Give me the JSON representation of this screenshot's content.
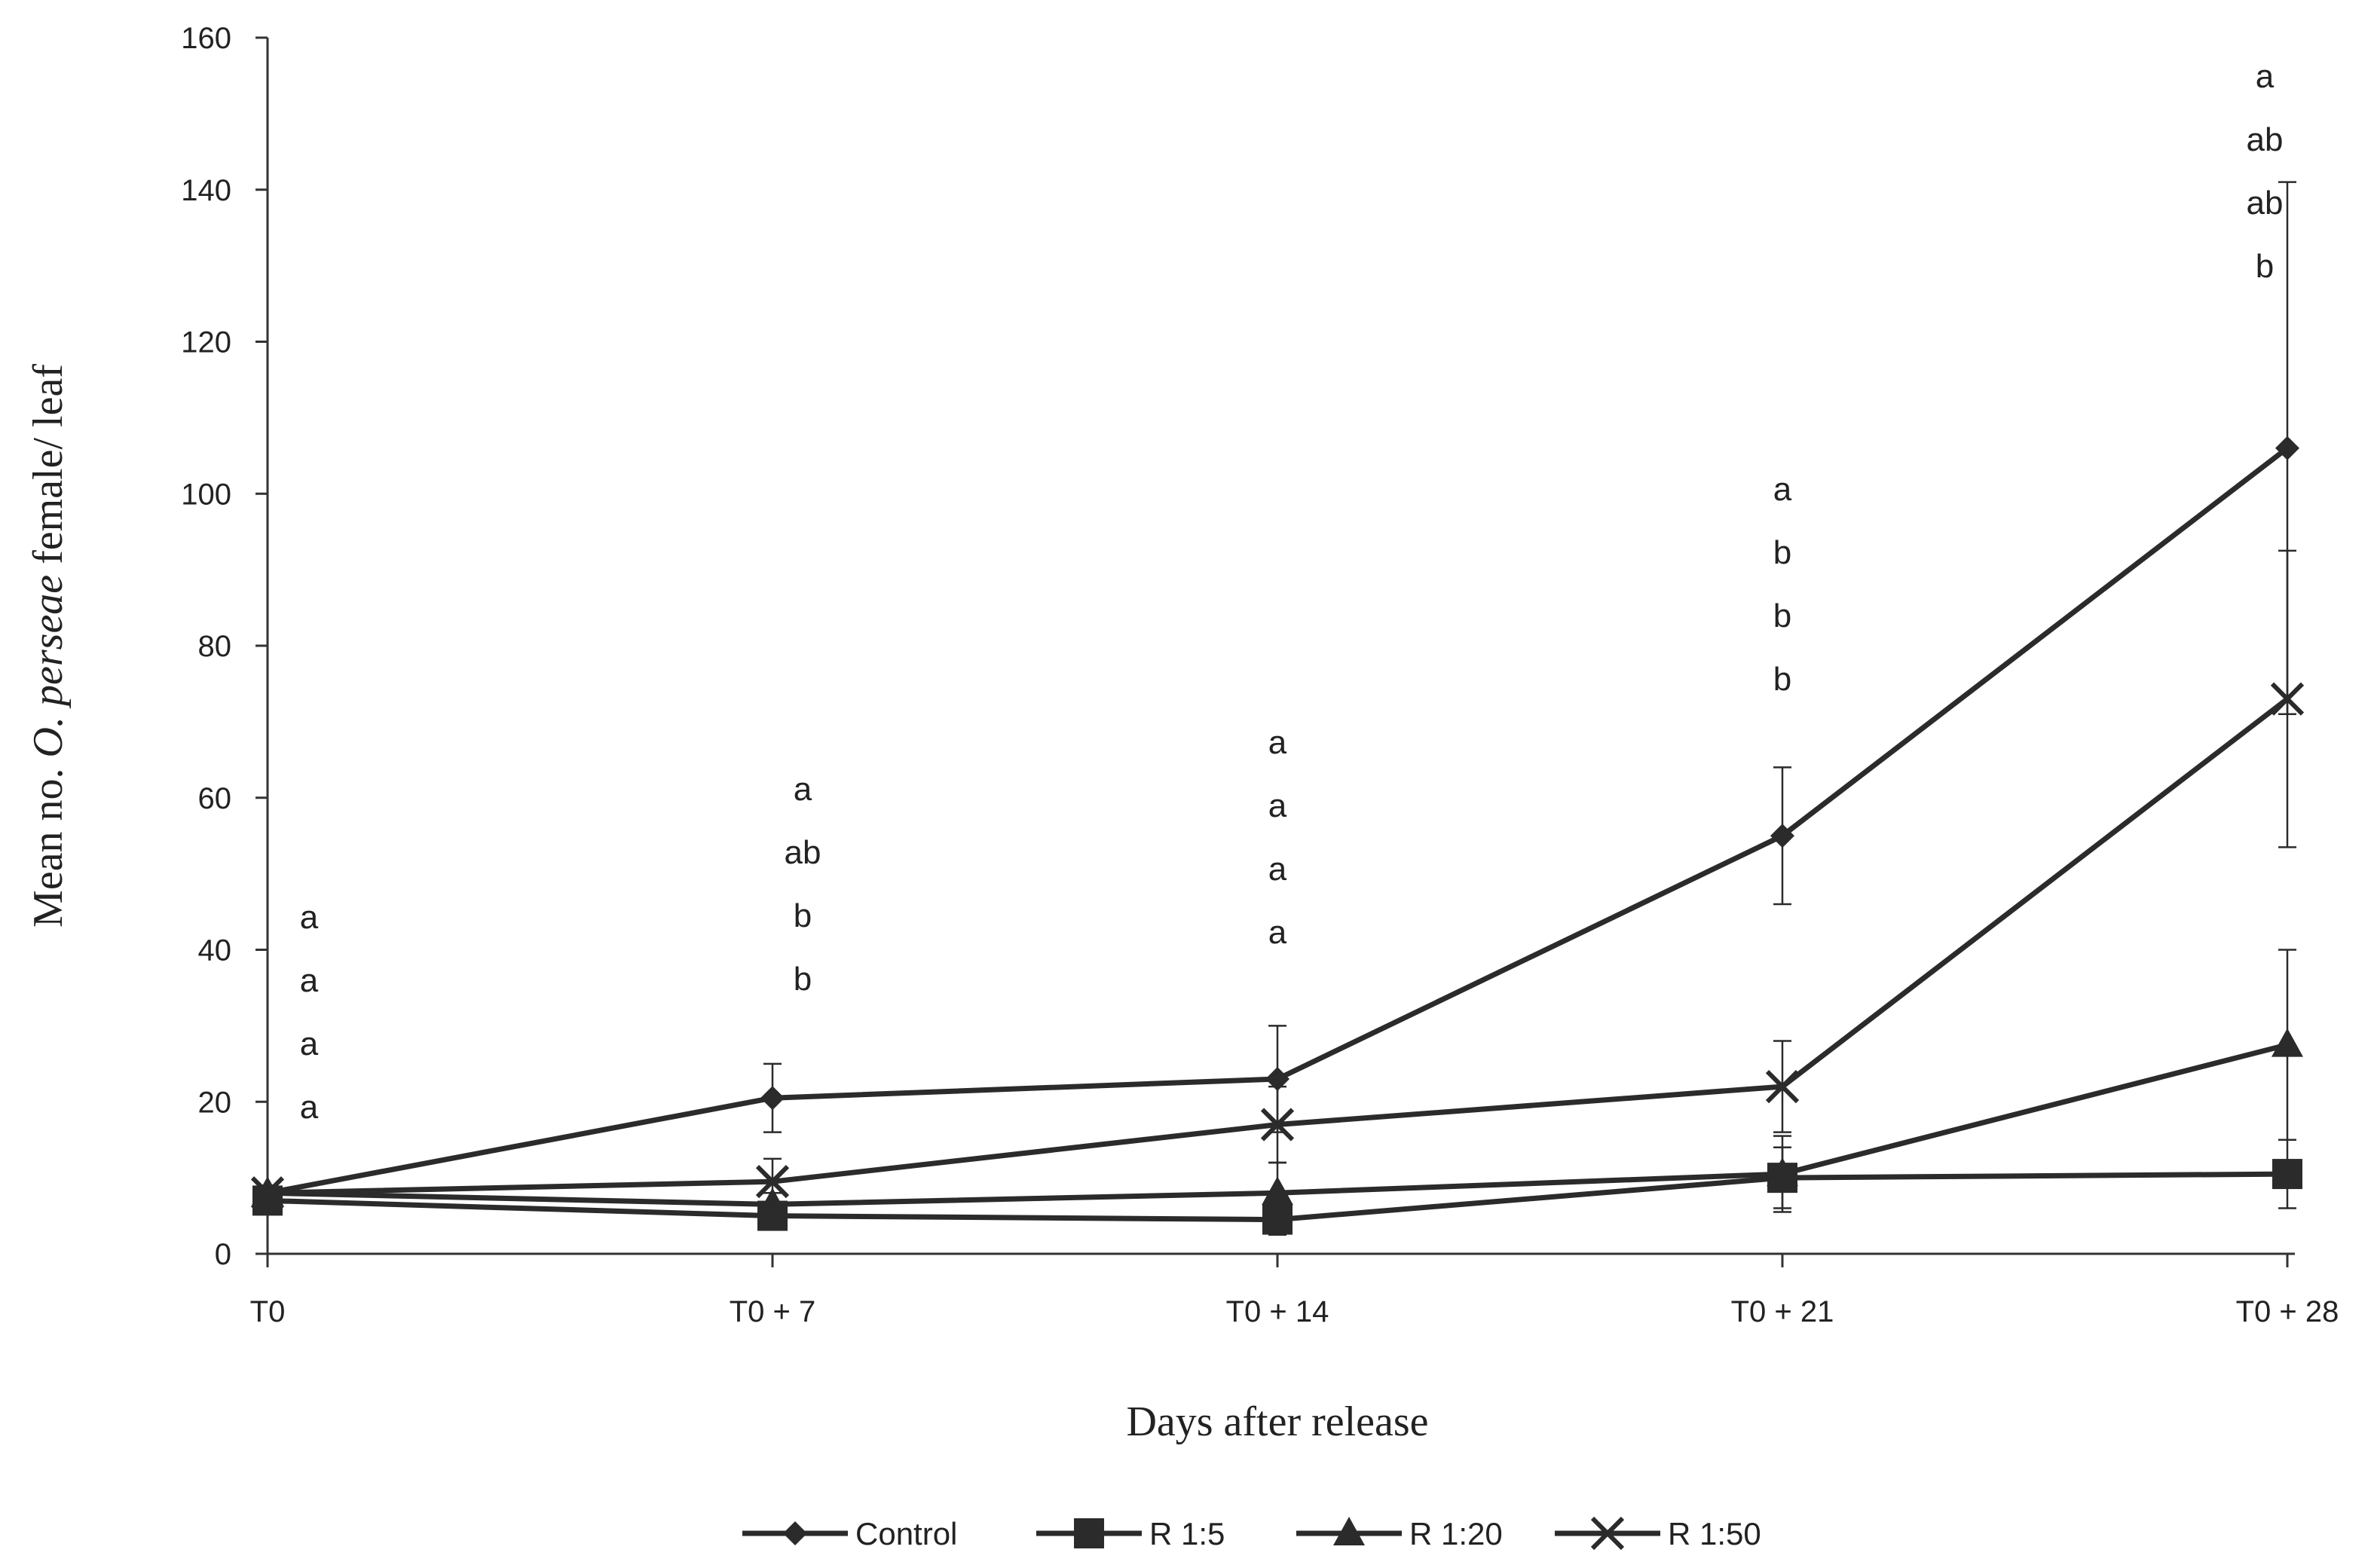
{
  "chart_data": {
    "type": "line",
    "title": "",
    "xlabel": "Days after release",
    "ylabel_prefix": "Mean no. ",
    "ylabel_species": "O. perseae",
    "ylabel_suffix": " female/ leaf",
    "categories": [
      "T0",
      "T0 + 7",
      "T0 + 14",
      "T0 + 21",
      "T0 + 28"
    ],
    "ylim": [
      0,
      160
    ],
    "yticks": [
      "0",
      "20",
      "40",
      "60",
      "80",
      "100",
      "120",
      "140",
      "160"
    ],
    "grid": false,
    "legend_position": "bottom",
    "line_color": "#2b2b2b",
    "series": [
      {
        "name": "Control",
        "marker": "diamond",
        "values": [
          8,
          20.5,
          23,
          55,
          106
        ],
        "errors": [
          1,
          4.5,
          7,
          9,
          35
        ]
      },
      {
        "name": "R 1:5",
        "marker": "square",
        "values": [
          7,
          5,
          4.5,
          10,
          10.5
        ],
        "errors": [
          1,
          1.5,
          2,
          4,
          4.5
        ]
      },
      {
        "name": "R 1:20",
        "marker": "triangle",
        "values": [
          8,
          6.5,
          8,
          10.5,
          27.5
        ],
        "errors": [
          1,
          1.5,
          4,
          5,
          12.5
        ]
      },
      {
        "name": "R 1:50",
        "marker": "x",
        "values": [
          8,
          9.5,
          17,
          22,
          73
        ],
        "errors": [
          1,
          3,
          5,
          6,
          19.5
        ]
      }
    ],
    "annotations": [
      {
        "category": "T0",
        "letters": [
          "a",
          "a",
          "a",
          "a"
        ]
      },
      {
        "category": "T0 + 7",
        "letters": [
          "a",
          "ab",
          "b",
          "b"
        ]
      },
      {
        "category": "T0 + 14",
        "letters": [
          "a",
          "a",
          "a",
          "a"
        ]
      },
      {
        "category": "T0 + 21",
        "letters": [
          "a",
          "b",
          "b",
          "b"
        ]
      },
      {
        "category": "T0 + 28",
        "letters": [
          "a",
          "ab",
          "ab",
          "b"
        ]
      }
    ]
  }
}
